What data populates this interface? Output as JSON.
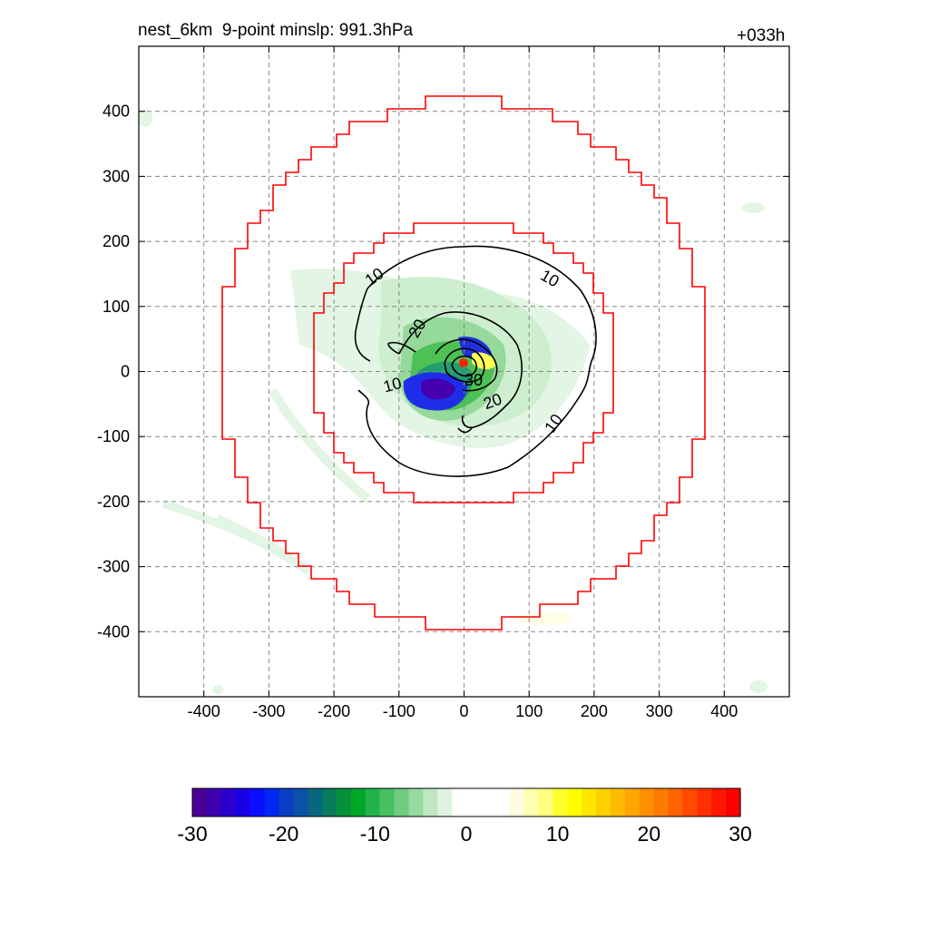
{
  "header": {
    "title": "nest_6km  9-point minslp: 991.3hPa",
    "forecast_hour": "+033h"
  },
  "chart_data": {
    "type": "contour",
    "x_ticks": [
      -400,
      -300,
      -200,
      -100,
      0,
      100,
      200,
      300,
      400
    ],
    "y_ticks": [
      400,
      300,
      200,
      100,
      0,
      -100,
      -200,
      -300,
      -400
    ],
    "xlim": [
      -500,
      500
    ],
    "ylim": [
      -500,
      500
    ],
    "grid": true,
    "contour_labels": [
      "10",
      "10",
      "20",
      "10",
      "30",
      "20",
      "10"
    ],
    "colorbar": {
      "ticks": [
        "-30",
        "-20",
        "-10",
        "0",
        "10",
        "20",
        "30"
      ],
      "range": [
        -30,
        30
      ],
      "colors": [
        "#4b0095",
        "#3d00b0",
        "#2a00cc",
        "#1a00e6",
        "#0a10ff",
        "#0028f0",
        "#0a3ec8",
        "#0a52a6",
        "#0a6680",
        "#087a5e",
        "#05903c",
        "#00a82a",
        "#22b44a",
        "#48c060",
        "#70cc80",
        "#98daa0",
        "#bfe8c2",
        "#dff3e0",
        "#ffffff",
        "#ffffff",
        "#ffffff",
        "#ffffff",
        "#fffde0",
        "#ffffb0",
        "#ffff80",
        "#ffff30",
        "#ffff00",
        "#ffe600",
        "#ffd000",
        "#ffbb00",
        "#ffa500",
        "#ff9000",
        "#ff7a00",
        "#ff6200",
        "#ff4a00",
        "#ff3000",
        "#ff1800",
        "#ff0000"
      ]
    }
  }
}
